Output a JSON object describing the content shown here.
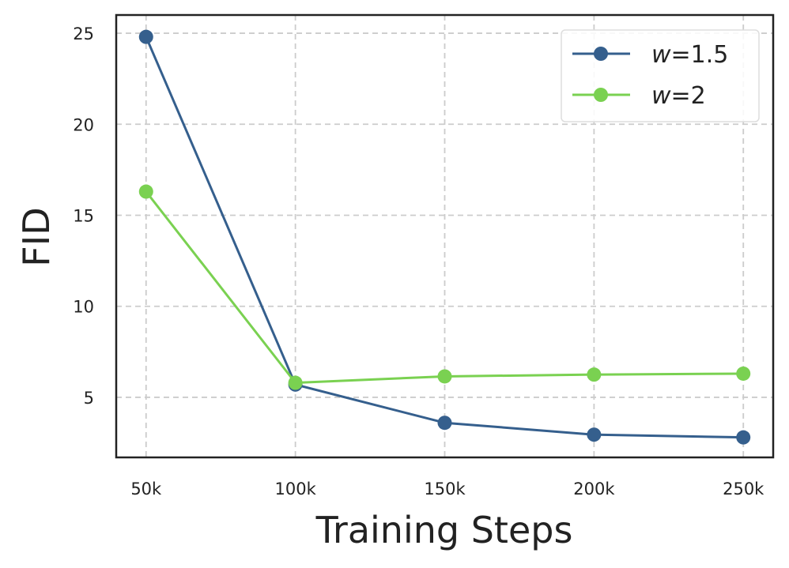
{
  "chart_data": {
    "type": "line",
    "title": "",
    "xlabel": "Training Steps",
    "ylabel": "FID",
    "categories": [
      "50k",
      "100k",
      "150k",
      "200k",
      "250k"
    ],
    "x": [
      50000,
      100000,
      150000,
      200000,
      250000
    ],
    "xlim": [
      40000,
      260000
    ],
    "ylim": [
      1.7,
      26.0
    ],
    "yticks": [
      5,
      10,
      15,
      20,
      25
    ],
    "yticklabels": [
      "5",
      "10",
      "15",
      "20",
      "25"
    ],
    "grid": true,
    "grid_style": "dashed",
    "legend_position": "top-right",
    "series": [
      {
        "name": "w=1.5",
        "name_parts": {
          "var": "w",
          "rest": "=1.5"
        },
        "color": "#355f8d",
        "values": [
          24.8,
          5.7,
          3.6,
          2.95,
          2.8
        ]
      },
      {
        "name": "w=2",
        "name_parts": {
          "var": "w",
          "rest": "=2"
        },
        "color": "#7ad151",
        "values": [
          16.3,
          5.8,
          6.15,
          6.25,
          6.3
        ]
      }
    ]
  }
}
